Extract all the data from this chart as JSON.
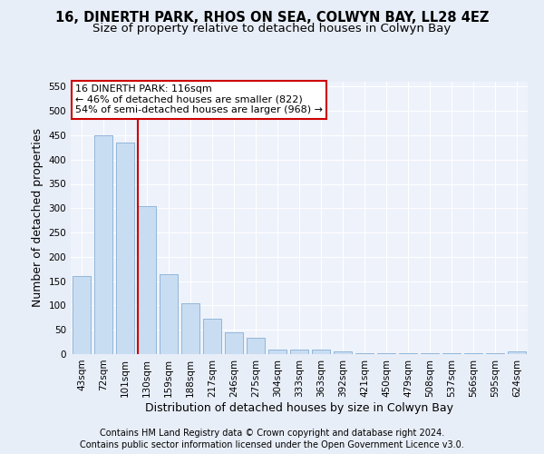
{
  "title1": "16, DINERTH PARK, RHOS ON SEA, COLWYN BAY, LL28 4EZ",
  "title2": "Size of property relative to detached houses in Colwyn Bay",
  "xlabel": "Distribution of detached houses by size in Colwyn Bay",
  "ylabel": "Number of detached properties",
  "categories": [
    "43sqm",
    "72sqm",
    "101sqm",
    "130sqm",
    "159sqm",
    "188sqm",
    "217sqm",
    "246sqm",
    "275sqm",
    "304sqm",
    "333sqm",
    "363sqm",
    "392sqm",
    "421sqm",
    "450sqm",
    "479sqm",
    "508sqm",
    "537sqm",
    "566sqm",
    "595sqm",
    "624sqm"
  ],
  "values": [
    160,
    450,
    435,
    305,
    165,
    105,
    73,
    44,
    33,
    10,
    10,
    10,
    5,
    2,
    2,
    2,
    2,
    2,
    2,
    2,
    5
  ],
  "bar_color": "#c9ddf2",
  "bar_edge_color": "#85aed4",
  "vline_x": 2.57,
  "vline_color": "#cc0000",
  "annotation_line1": "16 DINERTH PARK: 116sqm",
  "annotation_line2": "← 46% of detached houses are smaller (822)",
  "annotation_line3": "54% of semi-detached houses are larger (968) →",
  "annotation_box_color": "#ffffff",
  "annotation_box_edge": "#cc0000",
  "ylim": [
    0,
    560
  ],
  "yticks": [
    0,
    50,
    100,
    150,
    200,
    250,
    300,
    350,
    400,
    450,
    500,
    550
  ],
  "bg_color": "#e8eef8",
  "plot_bg_color": "#eef2fb",
  "footer1": "Contains HM Land Registry data © Crown copyright and database right 2024.",
  "footer2": "Contains public sector information licensed under the Open Government Licence v3.0.",
  "title_fontsize": 10.5,
  "subtitle_fontsize": 9.5,
  "label_fontsize": 9,
  "tick_fontsize": 7.5,
  "footer_fontsize": 7,
  "annotation_fontsize": 8
}
